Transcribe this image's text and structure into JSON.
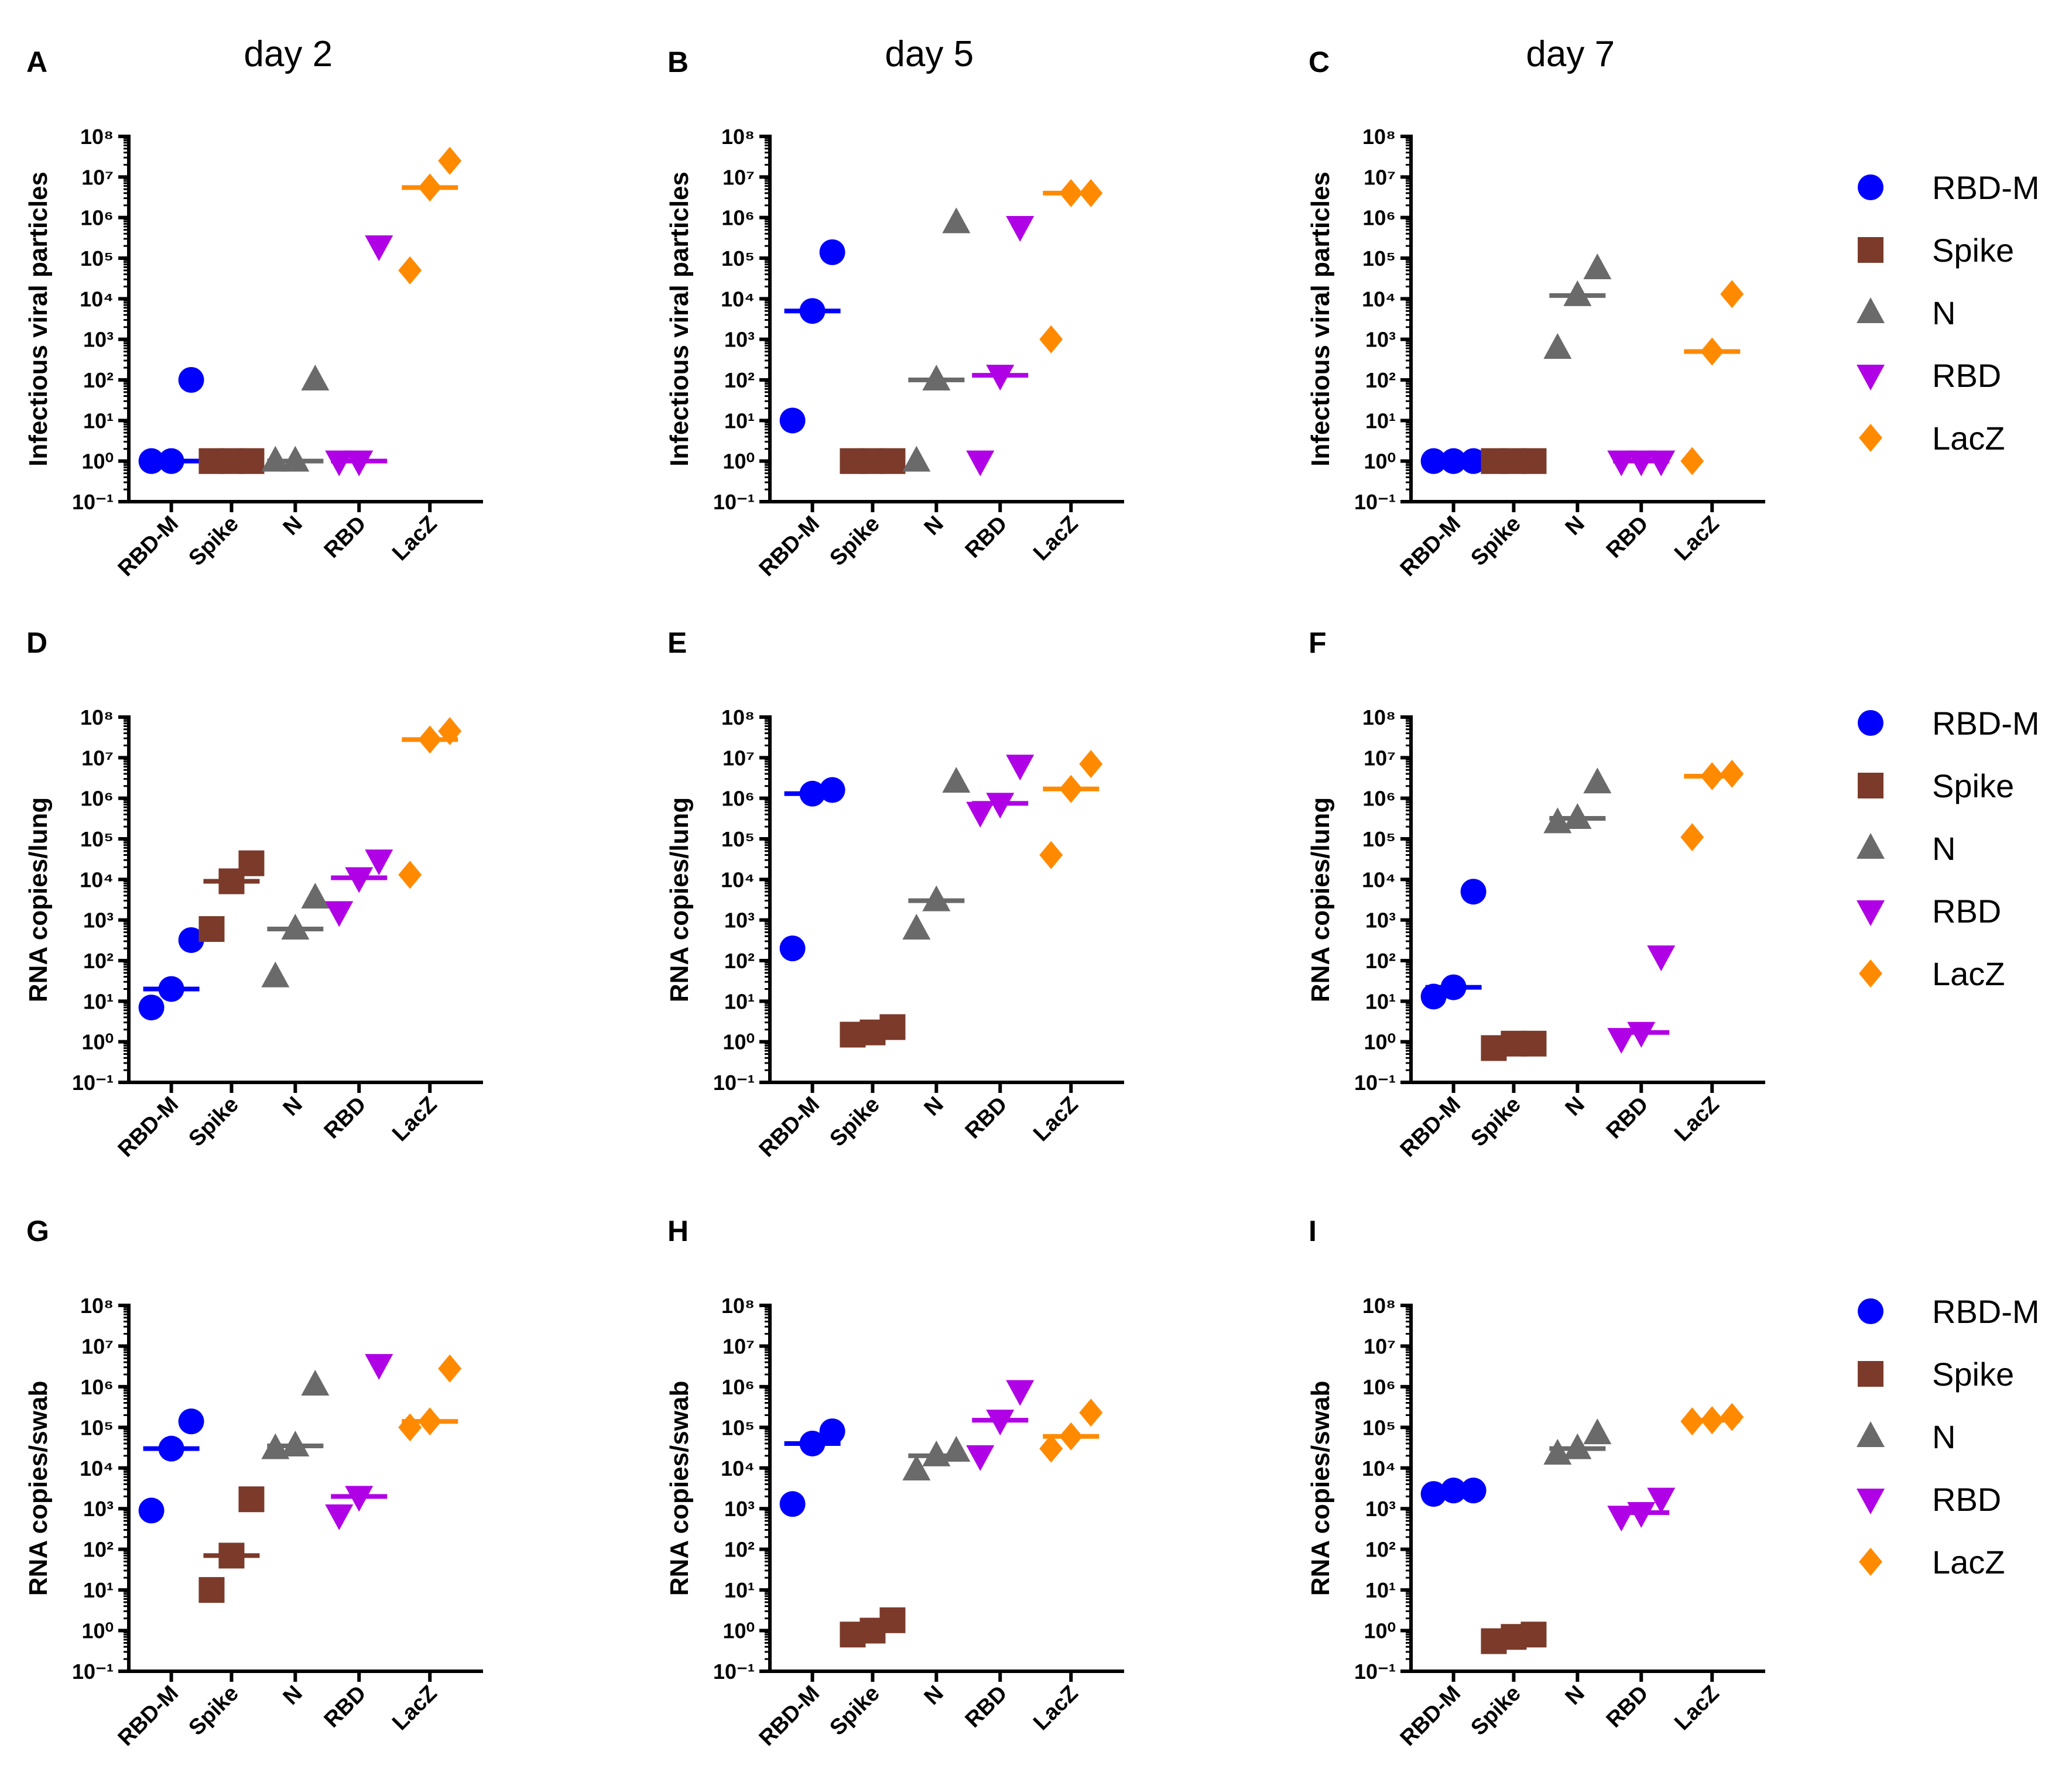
{
  "colors": {
    "RBD-M": "#0000ff",
    "Spike": "#7b3a2a",
    "N": "#6a6a6a",
    "RBD": "#b000e6",
    "LacZ": "#ff8a00"
  },
  "markers": {
    "RBD-M": "circle",
    "Spike": "square",
    "N": "triangle-up",
    "RBD": "triangle-down",
    "LacZ": "diamond"
  },
  "legend": {
    "entries": [
      "RBD-M",
      "Spike",
      "N",
      "RBD",
      "LacZ"
    ]
  },
  "chart_data": [
    {
      "panel": "A",
      "title": "day 2",
      "type": "scatter",
      "ylabel": "Infectious viral particles",
      "yscale": "log",
      "ylim_exp": [
        -1,
        8
      ],
      "categories": [
        "RBD-M",
        "Spike",
        "N",
        "RBD",
        "LacZ"
      ],
      "series": [
        {
          "name": "RBD-M",
          "values": [
            1,
            1,
            100
          ],
          "median": 1
        },
        {
          "name": "Spike",
          "values": [
            1,
            1,
            1
          ],
          "median": 1
        },
        {
          "name": "N",
          "values": [
            1,
            1,
            100
          ],
          "median": 1
        },
        {
          "name": "RBD",
          "values": [
            1,
            1,
            200000
          ],
          "median": 1
        },
        {
          "name": "LacZ",
          "values": [
            50000,
            5500000,
            25000000
          ],
          "median": 5500000
        }
      ]
    },
    {
      "panel": "B",
      "title": "day 5",
      "type": "scatter",
      "ylabel": "Infectious viral particles",
      "yscale": "log",
      "ylim_exp": [
        -1,
        8
      ],
      "categories": [
        "RBD-M",
        "Spike",
        "N",
        "RBD",
        "LacZ"
      ],
      "series": [
        {
          "name": "RBD-M",
          "values": [
            10,
            5000,
            140000
          ],
          "median": 5000
        },
        {
          "name": "Spike",
          "values": [
            1,
            1,
            1
          ],
          "median": 1
        },
        {
          "name": "N",
          "values": [
            1,
            100,
            750000
          ],
          "median": 100
        },
        {
          "name": "RBD",
          "values": [
            1,
            130,
            600000
          ],
          "median": 130
        },
        {
          "name": "LacZ",
          "values": [
            1000,
            4000000,
            4000000
          ],
          "median": 4000000
        }
      ]
    },
    {
      "panel": "C",
      "title": "day 7",
      "type": "scatter",
      "ylabel": "Infectious viral particles",
      "yscale": "log",
      "ylim_exp": [
        -1,
        8
      ],
      "categories": [
        "RBD-M",
        "Spike",
        "N",
        "RBD",
        "LacZ"
      ],
      "series": [
        {
          "name": "RBD-M",
          "values": [
            1,
            1,
            1
          ],
          "median": 1
        },
        {
          "name": "Spike",
          "values": [
            1,
            1,
            1
          ],
          "median": 1
        },
        {
          "name": "N",
          "values": [
            600,
            12000,
            55000
          ],
          "median": 12000
        },
        {
          "name": "RBD",
          "values": [
            1,
            1,
            1
          ],
          "median": 1
        },
        {
          "name": "LacZ",
          "values": [
            1,
            500,
            13000
          ],
          "median": 500
        }
      ]
    },
    {
      "panel": "D",
      "title": "",
      "type": "scatter",
      "ylabel": "RNA copies/lung",
      "yscale": "log",
      "ylim_exp": [
        -1,
        8
      ],
      "categories": [
        "RBD-M",
        "Spike",
        "N",
        "RBD",
        "LacZ"
      ],
      "series": [
        {
          "name": "RBD-M",
          "values": [
            7,
            20,
            320
          ],
          "median": 20
        },
        {
          "name": "Spike",
          "values": [
            600,
            9000,
            25000
          ],
          "median": 9000
        },
        {
          "name": "N",
          "values": [
            40,
            600,
            3500
          ],
          "median": 600
        },
        {
          "name": "RBD",
          "values": [
            1600,
            11000,
            30000
          ],
          "median": 11000
        },
        {
          "name": "LacZ",
          "values": [
            13000,
            28000000,
            45000000
          ],
          "median": 28000000
        }
      ]
    },
    {
      "panel": "E",
      "title": "",
      "type": "scatter",
      "ylabel": "RNA copies/lung",
      "yscale": "log",
      "ylim_exp": [
        -1,
        8
      ],
      "categories": [
        "RBD-M",
        "Spike",
        "N",
        "RBD",
        "LacZ"
      ],
      "series": [
        {
          "name": "RBD-M",
          "values": [
            200,
            1300000,
            1600000
          ],
          "median": 1300000
        },
        {
          "name": "Spike",
          "values": [
            1.5,
            1.7,
            2.3
          ],
          "median": 1.7
        },
        {
          "name": "N",
          "values": [
            600,
            3000,
            2500000
          ],
          "median": 3000
        },
        {
          "name": "RBD",
          "values": [
            450000,
            750000,
            6500000
          ],
          "median": 750000
        },
        {
          "name": "LacZ",
          "values": [
            40000,
            1700000,
            7000000
          ],
          "median": 1700000
        }
      ]
    },
    {
      "panel": "F",
      "title": "",
      "type": "scatter",
      "ylabel": "RNA copies/lung",
      "yscale": "log",
      "ylim_exp": [
        -1,
        8
      ],
      "categories": [
        "RBD-M",
        "Spike",
        "N",
        "RBD",
        "LacZ"
      ],
      "series": [
        {
          "name": "RBD-M",
          "values": [
            13,
            22,
            5000
          ],
          "median": 22
        },
        {
          "name": "Spike",
          "values": [
            0.7,
            0.9,
            0.9
          ],
          "median": 0.9
        },
        {
          "name": "N",
          "values": [
            250000,
            320000,
            2400000
          ],
          "median": 320000
        },
        {
          "name": "RBD",
          "values": [
            1.2,
            1.7,
            130
          ],
          "median": 1.7
        },
        {
          "name": "LacZ",
          "values": [
            110000,
            3500000,
            4000000
          ],
          "median": 3500000
        }
      ]
    },
    {
      "panel": "G",
      "title": "",
      "type": "scatter",
      "ylabel": "RNA copies/swab",
      "yscale": "log",
      "ylim_exp": [
        -1,
        8
      ],
      "categories": [
        "RBD-M",
        "Spike",
        "N",
        "RBD",
        "LacZ"
      ],
      "series": [
        {
          "name": "RBD-M",
          "values": [
            900,
            30000,
            140000
          ],
          "median": 30000
        },
        {
          "name": "Spike",
          "values": [
            10,
            70,
            1700
          ],
          "median": 70
        },
        {
          "name": "N",
          "values": [
            30000,
            35000,
            1100000
          ],
          "median": 35000
        },
        {
          "name": "RBD",
          "values": [
            700,
            2000,
            3500000
          ],
          "median": 2000
        },
        {
          "name": "LacZ",
          "values": [
            100000,
            140000,
            2800000
          ],
          "median": 140000
        }
      ]
    },
    {
      "panel": "H",
      "title": "",
      "type": "scatter",
      "ylabel": "RNA copies/swab",
      "yscale": "log",
      "ylim_exp": [
        -1,
        8
      ],
      "categories": [
        "RBD-M",
        "Spike",
        "N",
        "RBD",
        "LacZ"
      ],
      "series": [
        {
          "name": "RBD-M",
          "values": [
            1300,
            40000,
            80000
          ],
          "median": 40000
        },
        {
          "name": "Spike",
          "values": [
            0.8,
            1,
            1.8
          ],
          "median": 1
        },
        {
          "name": "N",
          "values": [
            9000,
            20000,
            26000
          ],
          "median": 20000
        },
        {
          "name": "RBD",
          "values": [
            20000,
            150000,
            800000
          ],
          "median": 150000
        },
        {
          "name": "LacZ",
          "values": [
            30000,
            60000,
            230000
          ],
          "median": 60000
        }
      ]
    },
    {
      "panel": "I",
      "title": "",
      "type": "scatter",
      "ylabel": "RNA copies/swab",
      "yscale": "log",
      "ylim_exp": [
        -1,
        8
      ],
      "categories": [
        "RBD-M",
        "Spike",
        "N",
        "RBD",
        "LacZ"
      ],
      "series": [
        {
          "name": "RBD-M",
          "values": [
            2300,
            2800,
            2800
          ],
          "median": 2800
        },
        {
          "name": "Spike",
          "values": [
            0.55,
            0.7,
            0.8
          ],
          "median": 0.7
        },
        {
          "name": "N",
          "values": [
            22000,
            30000,
            70000
          ],
          "median": 30000
        },
        {
          "name": "RBD",
          "values": [
            650,
            800,
            1800
          ],
          "median": 800
        },
        {
          "name": "LacZ",
          "values": [
            140000,
            150000,
            180000
          ],
          "median": 150000
        }
      ]
    }
  ]
}
